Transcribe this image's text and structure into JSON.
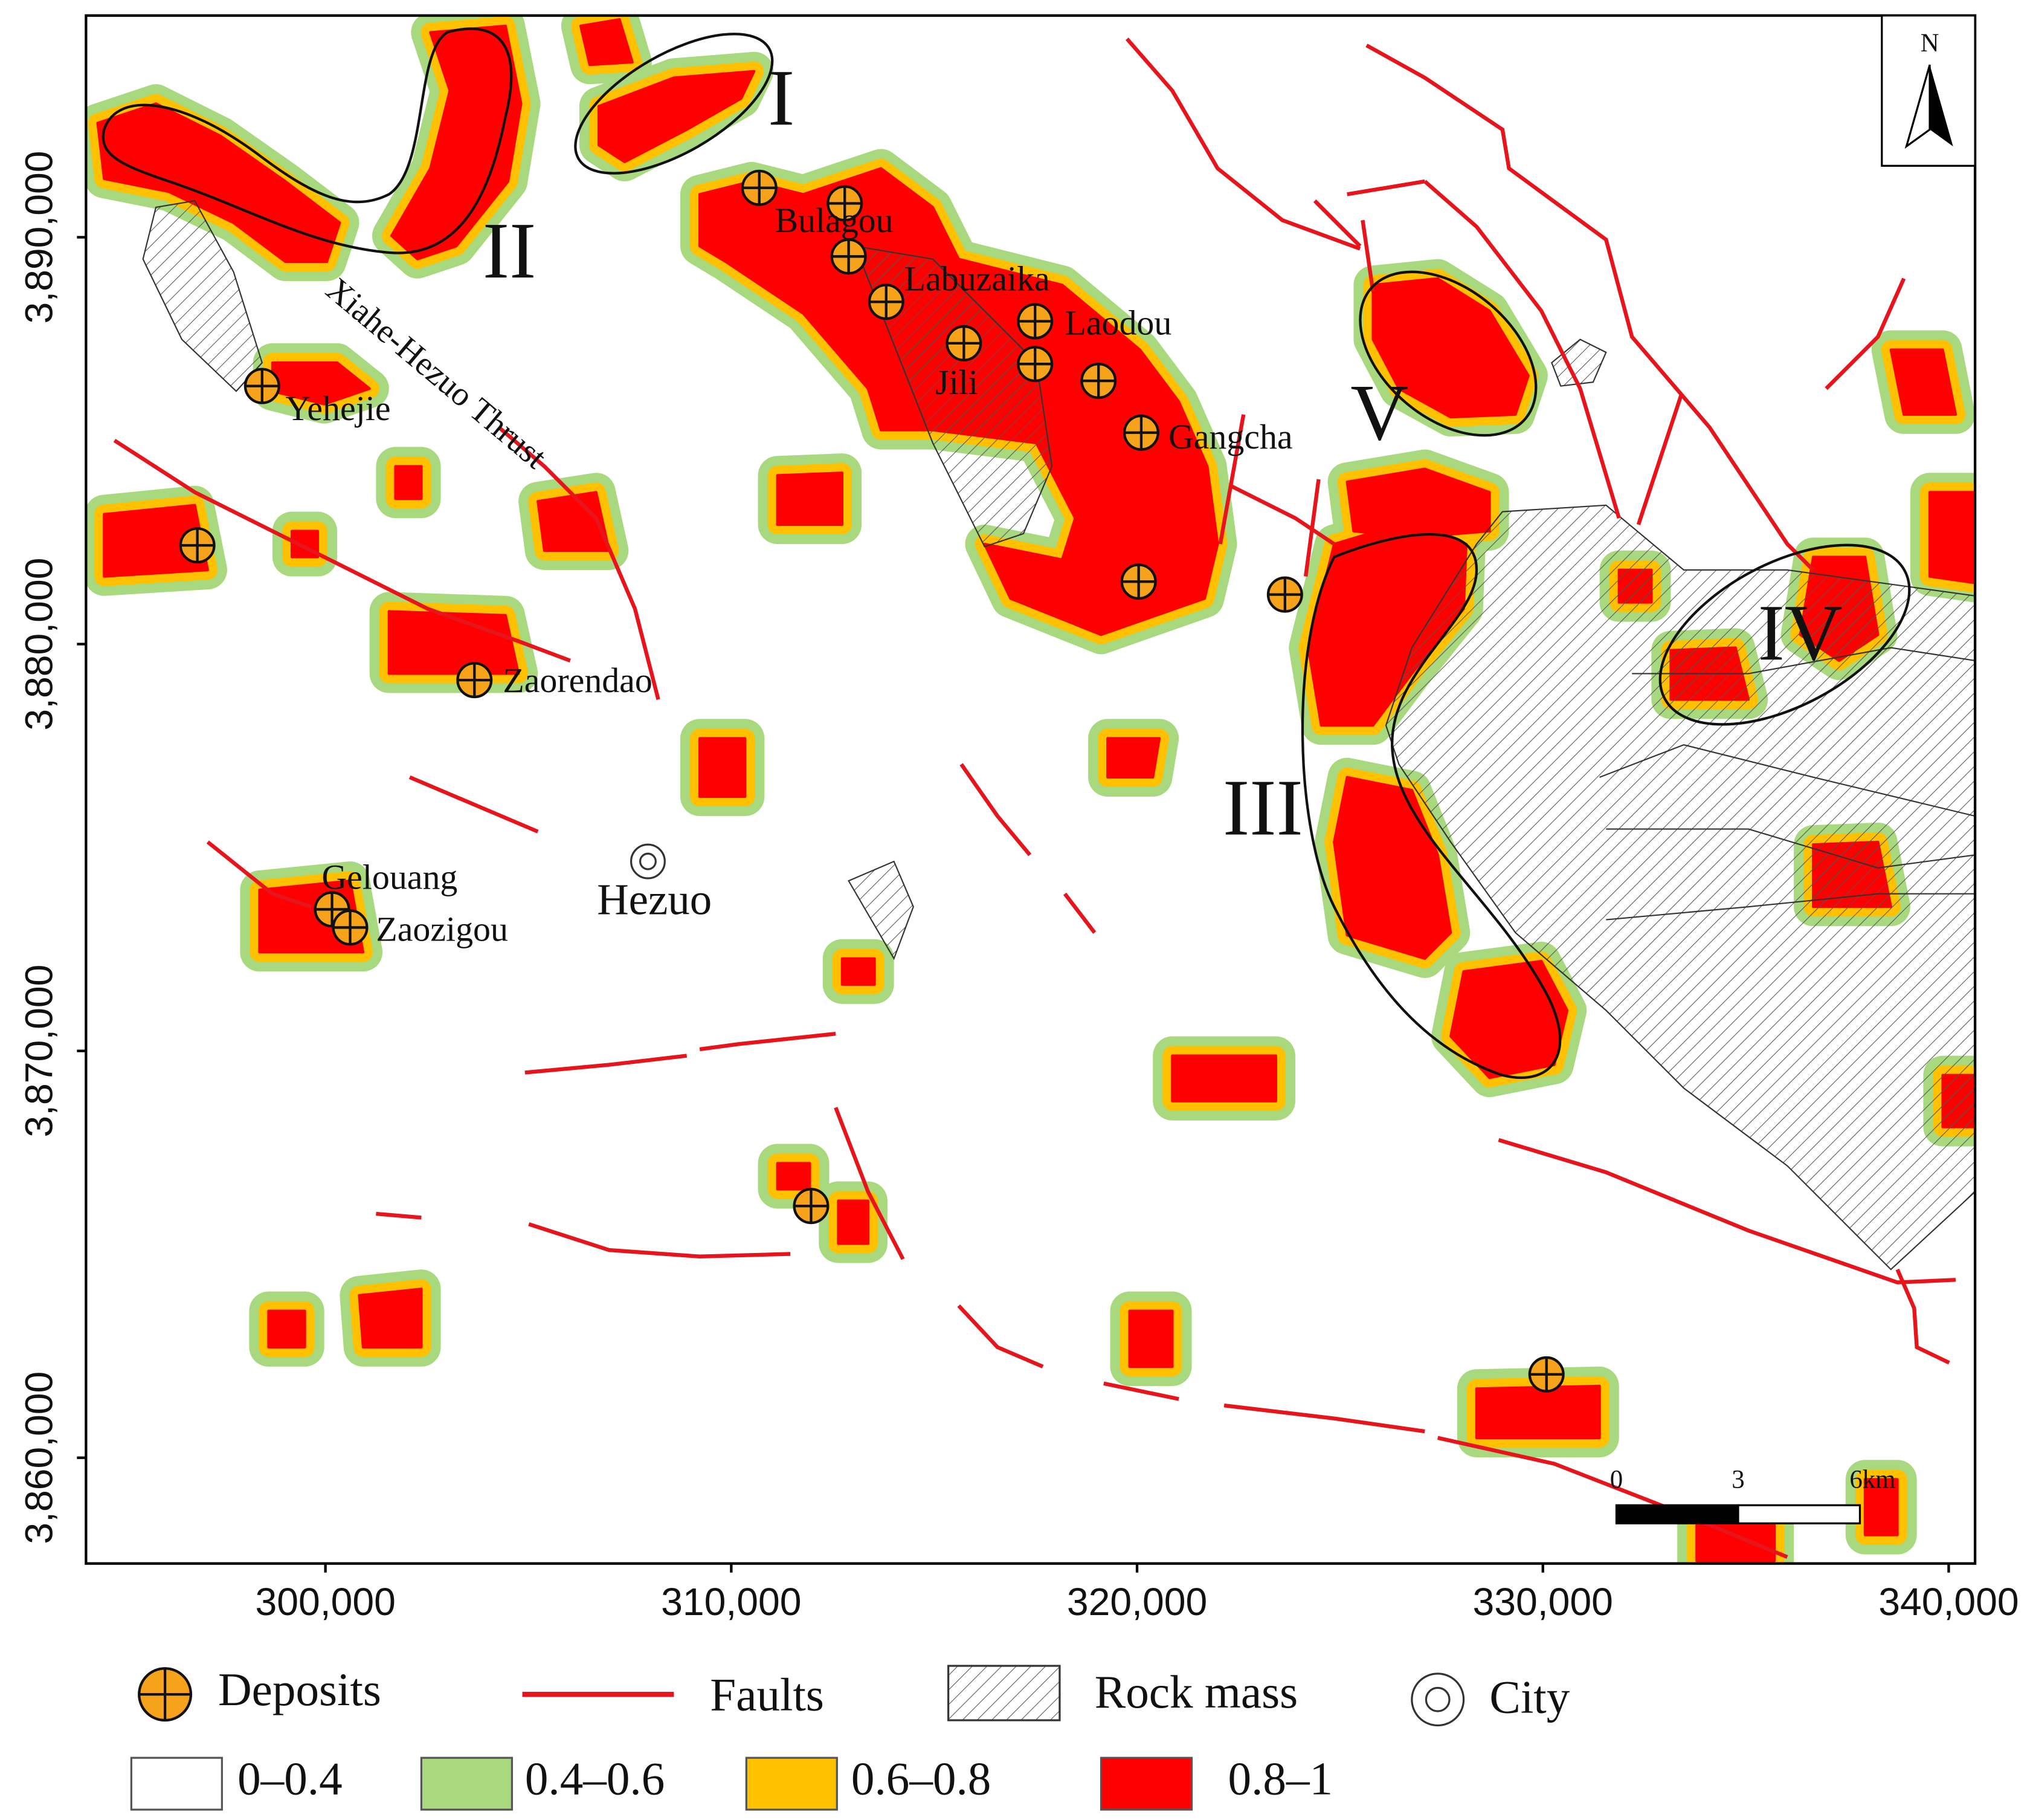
{
  "map": {
    "frame": {
      "xlim": [
        294100,
        340650
      ],
      "ylim": [
        3857400,
        3895450
      ],
      "xticks": [
        {
          "value": 300000,
          "label": "300,000"
        },
        {
          "value": 310000,
          "label": "310,000"
        },
        {
          "value": 320000,
          "label": "320,000"
        },
        {
          "value": 330000,
          "label": "330,000"
        },
        {
          "value": 340000,
          "label": "340,000"
        }
      ],
      "yticks": [
        {
          "value": 3860000,
          "label": "3,860,000"
        },
        {
          "value": 3870000,
          "label": "3,870,000"
        },
        {
          "value": 3880000,
          "label": "3,880,000"
        },
        {
          "value": 3890000,
          "label": "3,890,000"
        }
      ]
    },
    "north": "N",
    "regions": [
      "I",
      "II",
      "III",
      "IV",
      "V"
    ],
    "places": [
      "Bulagou",
      "Labuzaika",
      "Laodou",
      "Jili",
      "Gangcha",
      "Yehejie",
      "Zaorendao",
      "Gelouang",
      "Zaozigou"
    ],
    "city": "Hezuo",
    "thrust": "Xiahe-Hezuo Thrust",
    "scale_bar": {
      "ticks": [
        0,
        3,
        {
          "value": 6,
          "label": "6km"
        }
      ]
    }
  },
  "legend": {
    "symbols": [
      "Deposits",
      "Faults",
      "Rock mass",
      "City"
    ],
    "classes": [
      {
        "label": "0–0.4",
        "color": "#ffffff"
      },
      {
        "label": "0.4–0.6",
        "color": "#a8d97f"
      },
      {
        "label": "0.6–0.8",
        "color": "#ffc000"
      },
      {
        "label": "0.8–1",
        "color": "#ff0000"
      }
    ]
  }
}
